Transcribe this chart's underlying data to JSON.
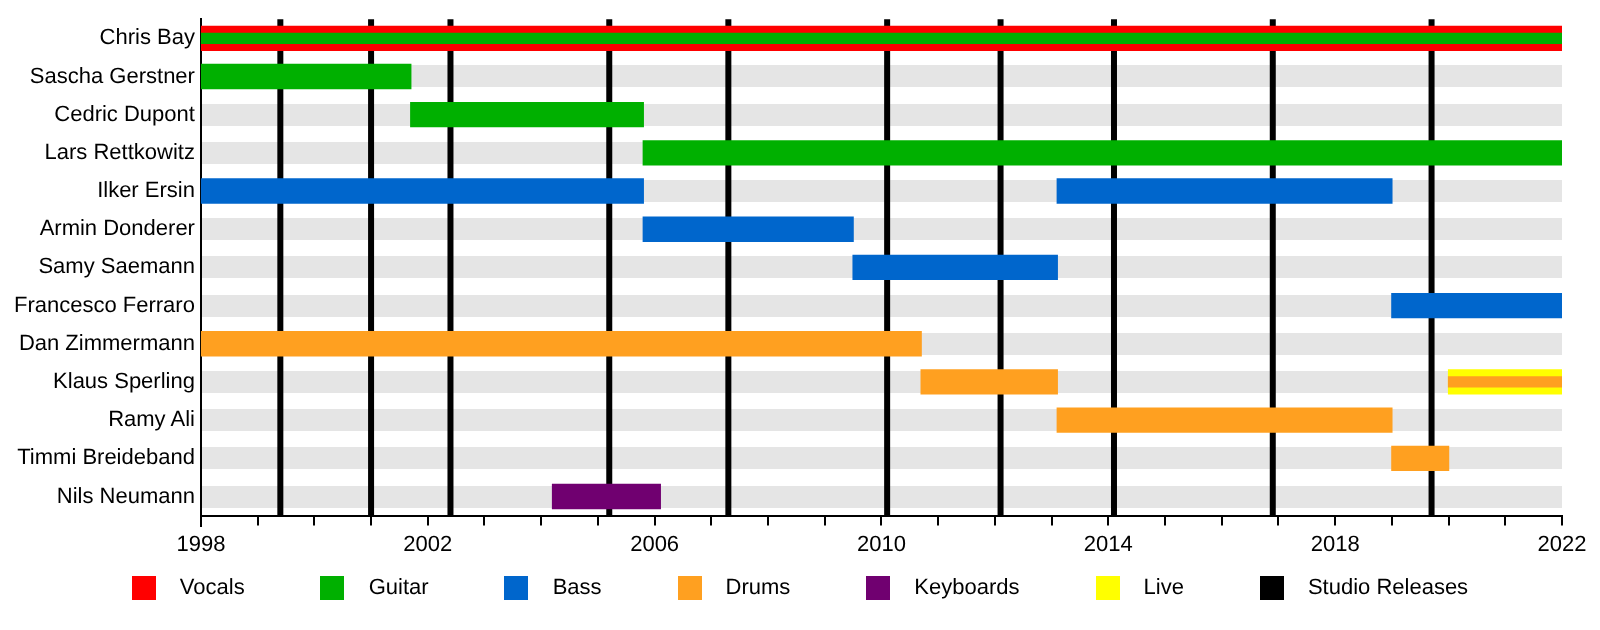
{
  "chart_data": {
    "type": "bar",
    "orientation": "horizontal",
    "categories": [
      "Chris Bay",
      "Sascha Gerstner",
      "Cedric Dupont",
      "Lars Rettkowitz",
      "Ilker Ersin",
      "Armin Donderer",
      "Samy Saemann",
      "Francesco Ferraro",
      "Dan Zimmermann",
      "Klaus Sperling",
      "Ramy Ali",
      "Timmi Breideband",
      "Nils Neumann"
    ],
    "series": [
      {
        "name": "Vocals",
        "color": "#ff0000",
        "base": [
          1998,
          null,
          null,
          null,
          null,
          null,
          null,
          null,
          null,
          null,
          null,
          null,
          null
        ],
        "values": [
          24,
          null,
          null,
          null,
          null,
          null,
          null,
          null,
          null,
          null,
          null,
          null,
          null
        ]
      },
      {
        "name": "Guitar",
        "color": "#00b000",
        "base": [
          1998,
          1998,
          2001.7,
          2005.8,
          null,
          null,
          null,
          null,
          null,
          null,
          null,
          null,
          null
        ],
        "values": [
          24,
          3.7,
          4.1,
          16.2,
          null,
          null,
          null,
          null,
          null,
          null,
          null,
          null,
          null
        ]
      },
      {
        "name": "Bass",
        "color": "#0066cc",
        "base": [
          null,
          null,
          null,
          null,
          1998,
          2005.8,
          2009.5,
          2019,
          null,
          null,
          null,
          null,
          null
        ],
        "values": [
          null,
          null,
          null,
          null,
          7.8,
          3.7,
          3.6,
          3,
          null,
          null,
          null,
          null,
          null
        ]
      },
      {
        "name": "Drums",
        "color": "#ffa020",
        "base": [
          null,
          null,
          null,
          null,
          null,
          null,
          null,
          null,
          1998,
          2010.7,
          2013.1,
          2019,
          null
        ],
        "values": [
          null,
          null,
          null,
          null,
          null,
          null,
          null,
          null,
          12.7,
          2.4,
          5.9,
          1,
          null
        ]
      },
      {
        "name": "Keyboards",
        "color": "#700070",
        "base": [
          null,
          null,
          null,
          null,
          null,
          null,
          null,
          null,
          null,
          null,
          null,
          null,
          2004.2
        ],
        "values": [
          null,
          null,
          null,
          null,
          null,
          null,
          null,
          null,
          null,
          null,
          null,
          null,
          1.9
        ]
      },
      {
        "name": "Live",
        "color": "#ffff00",
        "base": [
          null,
          null,
          null,
          null,
          null,
          null,
          null,
          null,
          null,
          2020,
          null,
          null,
          null
        ],
        "values": [
          null,
          null,
          null,
          null,
          null,
          null,
          null,
          null,
          null,
          2,
          null,
          null,
          null
        ]
      },
      {
        "color": "#0066cc",
        "base": [
          null,
          null,
          null,
          null,
          2013.1,
          null,
          null,
          null,
          null,
          null,
          null,
          null,
          null
        ],
        "values": [
          null,
          null,
          null,
          null,
          5.9,
          null,
          null,
          null,
          null,
          null,
          null,
          null,
          null
        ]
      },
      {
        "color": "#ffa020",
        "base": [
          null,
          null,
          null,
          null,
          null,
          null,
          null,
          null,
          null,
          2020,
          null,
          null,
          null
        ],
        "values": [
          null,
          null,
          null,
          null,
          null,
          null,
          null,
          null,
          null,
          2,
          null,
          null,
          null
        ]
      }
    ],
    "xlim": [
      1998,
      2022
    ],
    "xticks": [
      1998,
      {
        "value": 1999,
        "label": null
      },
      {
        "value": 2000,
        "label": null
      },
      {
        "value": 2001,
        "label": null
      },
      2002,
      {
        "value": 2003,
        "label": null
      },
      {
        "value": 2004,
        "label": null
      },
      {
        "value": 2005,
        "label": null
      },
      2006,
      {
        "value": 2007,
        "label": null
      },
      {
        "value": 2008,
        "label": null
      },
      {
        "value": 2009,
        "label": null
      },
      2010,
      {
        "value": 2011,
        "label": null
      },
      {
        "value": 2012,
        "label": null
      },
      {
        "value": 2013,
        "label": null
      },
      2014,
      {
        "value": 2015,
        "label": null
      },
      {
        "value": 2016,
        "label": null
      },
      {
        "value": 2017,
        "label": null
      },
      2018,
      {
        "value": 2019,
        "label": null
      },
      {
        "value": 2020,
        "label": null
      },
      {
        "value": 2021,
        "label": null
      },
      2022
    ],
    "ref_lines": [
      {
        "axis": "x",
        "value": 1999.4,
        "color": "#000000",
        "label": "Studio Releases"
      },
      {
        "axis": "x",
        "value": 2001.0,
        "color": "#000000"
      },
      {
        "axis": "x",
        "value": 2002.4,
        "color": "#000000"
      },
      {
        "axis": "x",
        "value": 2005.2,
        "color": "#000000"
      },
      {
        "axis": "x",
        "value": 2007.3,
        "color": "#000000"
      },
      {
        "axis": "x",
        "value": 2010.1,
        "color": "#000000"
      },
      {
        "axis": "x",
        "value": 2012.1,
        "color": "#000000"
      },
      {
        "axis": "x",
        "value": 2014.1,
        "color": "#000000"
      },
      {
        "axis": "x",
        "value": 2016.9,
        "color": "#000000"
      },
      {
        "axis": "x",
        "value": 2019.7,
        "color": "#000000"
      }
    ],
    "grid": "y",
    "legend": "bottom"
  }
}
